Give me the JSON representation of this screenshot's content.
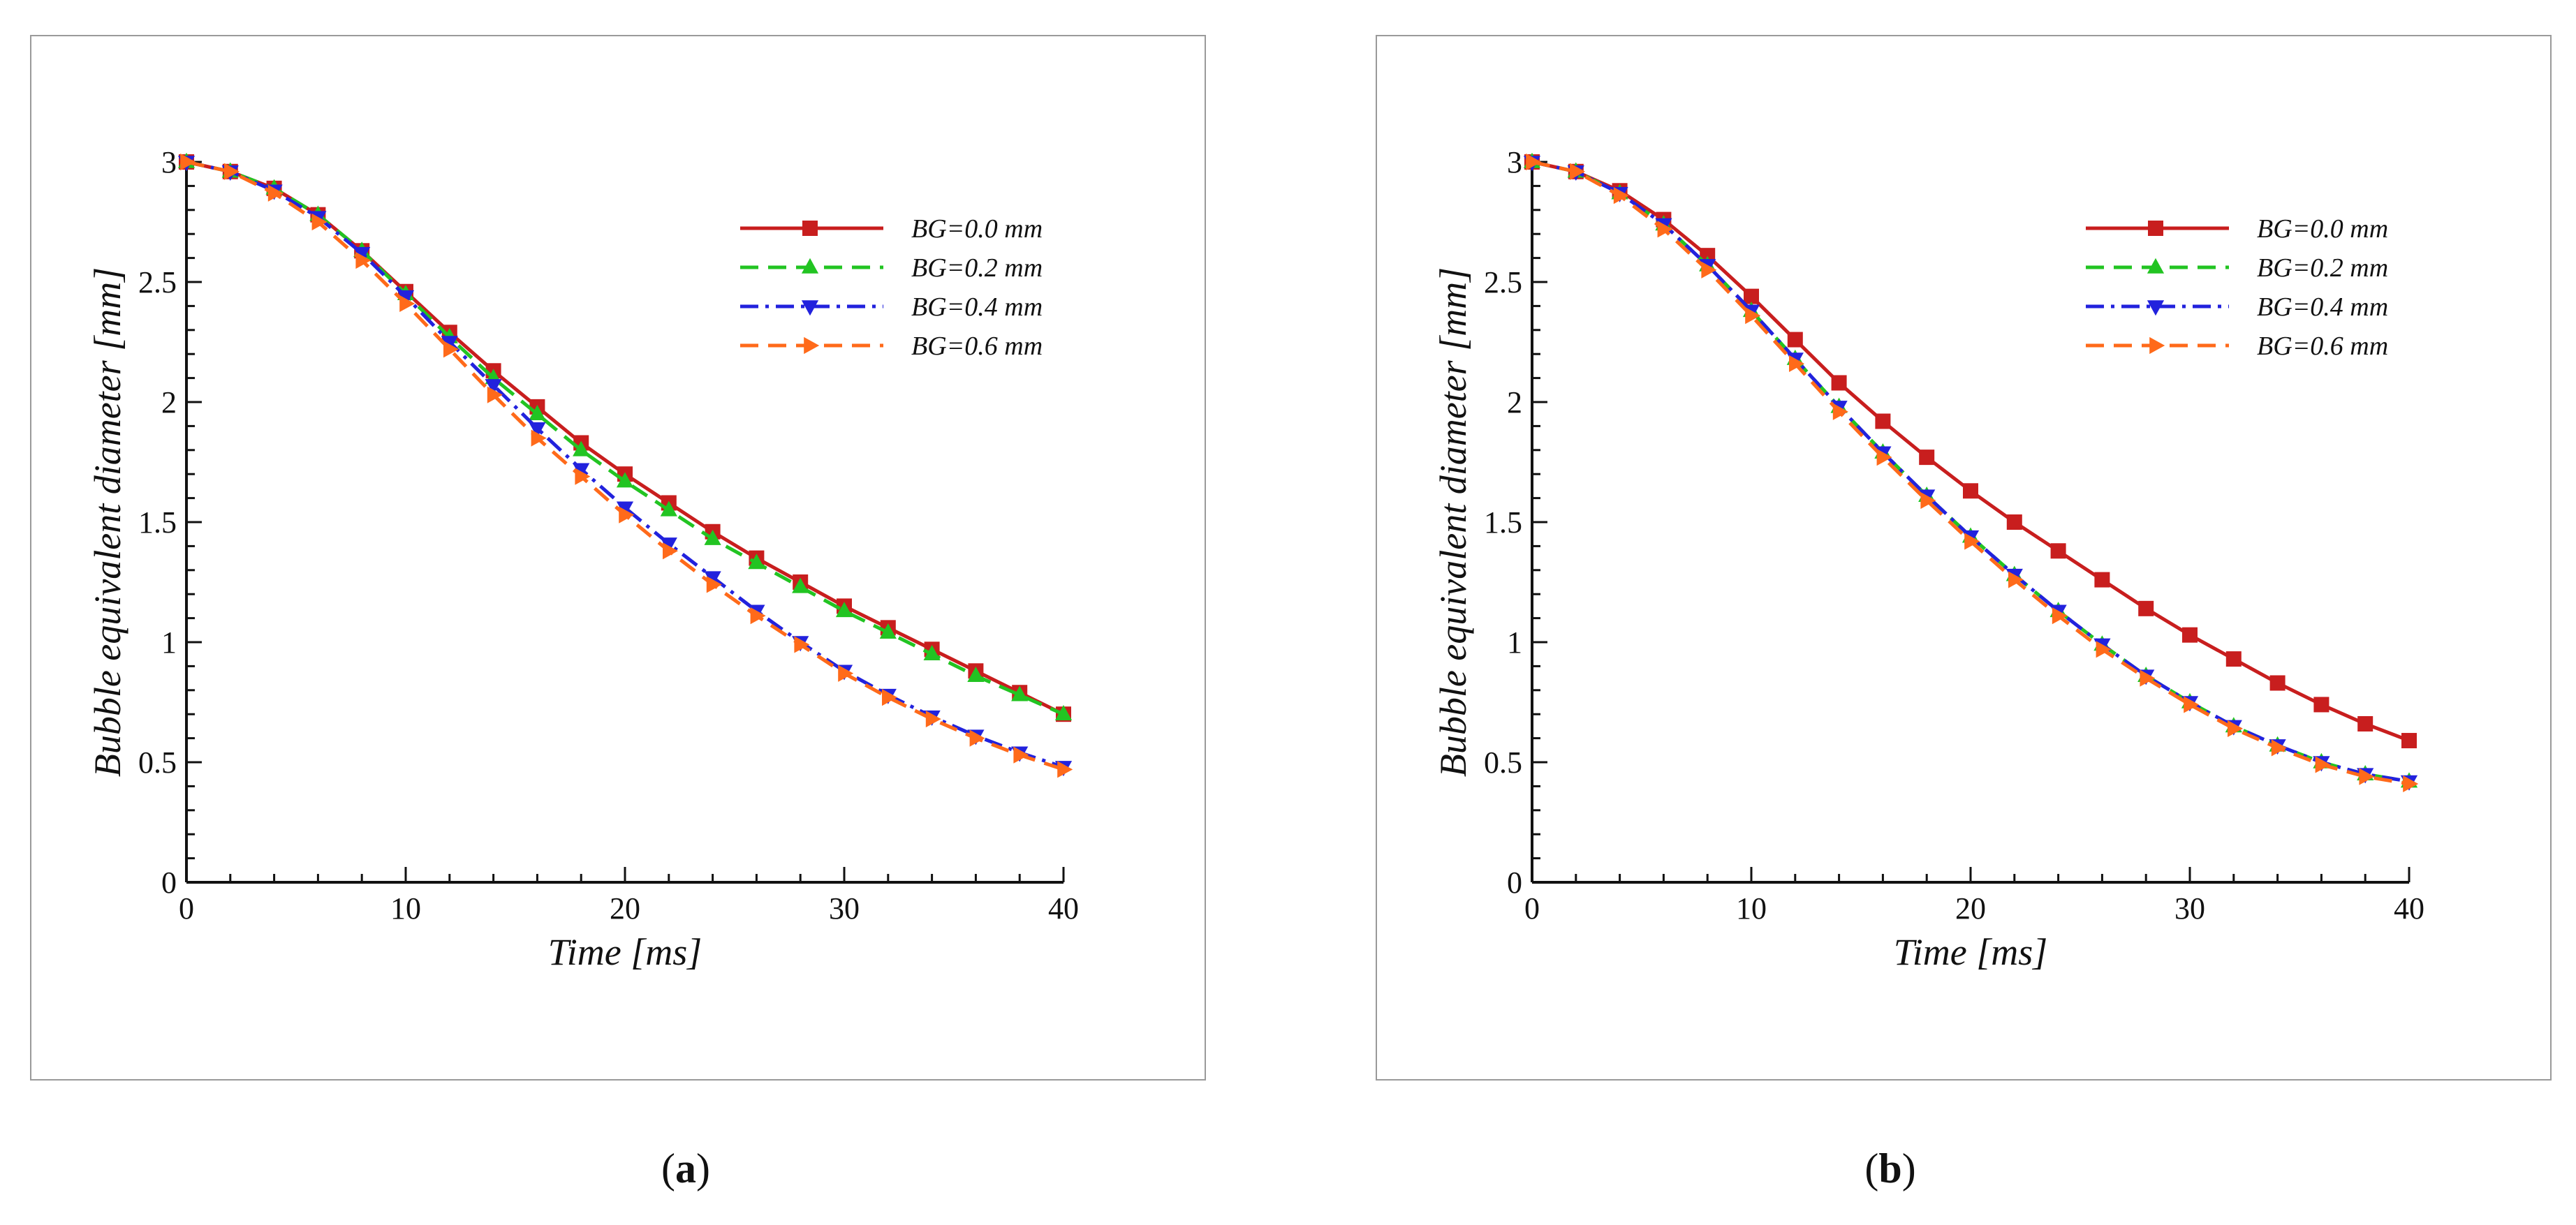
{
  "chart_data": [
    {
      "type": "line",
      "panel_label": "a",
      "xlabel": "Time [ms]",
      "ylabel": "Bubble equivalent diameter [mm]",
      "xlim": [
        0,
        40
      ],
      "ylim": [
        0,
        3
      ],
      "x_ticks": [
        "0",
        "10",
        "20",
        "30",
        "40"
      ],
      "y_ticks": [
        "0",
        "0.5",
        "1",
        "1.5",
        "2",
        "2.5",
        "3"
      ],
      "legend_position": "top-right",
      "series": [
        {
          "name": "BG=0.0 mm",
          "color": "#c81e1e",
          "line": "solid",
          "marker": "square",
          "x": [
            0,
            2,
            4,
            6,
            8,
            10,
            12,
            14,
            16,
            18,
            20,
            22,
            24,
            26,
            28,
            30,
            32,
            34,
            36,
            38,
            40
          ],
          "y": [
            3.0,
            2.96,
            2.89,
            2.78,
            2.63,
            2.46,
            2.29,
            2.13,
            1.98,
            1.83,
            1.7,
            1.58,
            1.46,
            1.35,
            1.25,
            1.15,
            1.06,
            0.97,
            0.88,
            0.79,
            0.7
          ]
        },
        {
          "name": "BG=0.2 mm",
          "color": "#22c422",
          "line": "dashed",
          "marker": "triangle-up",
          "x": [
            0,
            2,
            4,
            6,
            8,
            10,
            12,
            14,
            16,
            18,
            20,
            22,
            24,
            26,
            28,
            30,
            32,
            34,
            36,
            38,
            40
          ],
          "y": [
            3.0,
            2.96,
            2.89,
            2.78,
            2.63,
            2.45,
            2.27,
            2.1,
            1.95,
            1.8,
            1.67,
            1.55,
            1.43,
            1.33,
            1.23,
            1.13,
            1.04,
            0.95,
            0.86,
            0.78,
            0.7
          ]
        },
        {
          "name": "BG=0.4 mm",
          "color": "#2222dd",
          "line": "dashdot",
          "marker": "triangle-down",
          "x": [
            0,
            2,
            4,
            6,
            8,
            10,
            12,
            14,
            16,
            18,
            20,
            22,
            24,
            26,
            28,
            30,
            32,
            34,
            36,
            38,
            40
          ],
          "y": [
            3.0,
            2.96,
            2.88,
            2.77,
            2.62,
            2.44,
            2.25,
            2.07,
            1.89,
            1.72,
            1.56,
            1.41,
            1.27,
            1.13,
            1.0,
            0.88,
            0.78,
            0.69,
            0.61,
            0.54,
            0.48
          ]
        },
        {
          "name": "BG=0.6 mm",
          "color": "#ff6a1a",
          "line": "dashed",
          "marker": "triangle-right",
          "x": [
            0,
            2,
            4,
            6,
            8,
            10,
            12,
            14,
            16,
            18,
            20,
            22,
            24,
            26,
            28,
            30,
            32,
            34,
            36,
            38,
            40
          ],
          "y": [
            3.0,
            2.96,
            2.87,
            2.75,
            2.59,
            2.41,
            2.22,
            2.03,
            1.85,
            1.69,
            1.53,
            1.38,
            1.24,
            1.11,
            0.99,
            0.87,
            0.77,
            0.68,
            0.6,
            0.53,
            0.47
          ]
        }
      ]
    },
    {
      "type": "line",
      "panel_label": "b",
      "xlabel": "Time [ms]",
      "ylabel": "Bubble equivalent diameter [mm]",
      "xlim": [
        0,
        40
      ],
      "ylim": [
        0,
        3
      ],
      "x_ticks": [
        "0",
        "10",
        "20",
        "30",
        "40"
      ],
      "y_ticks": [
        "0",
        "0.5",
        "1",
        "1.5",
        "2",
        "2.5",
        "3"
      ],
      "legend_position": "top-right",
      "series": [
        {
          "name": "BG=0.0 mm",
          "color": "#c81e1e",
          "line": "solid",
          "marker": "square",
          "x": [
            0,
            2,
            4,
            6,
            8,
            10,
            12,
            14,
            16,
            18,
            20,
            22,
            24,
            26,
            28,
            30,
            32,
            34,
            36,
            38,
            40
          ],
          "y": [
            3.0,
            2.96,
            2.88,
            2.76,
            2.61,
            2.44,
            2.26,
            2.08,
            1.92,
            1.77,
            1.63,
            1.5,
            1.38,
            1.26,
            1.14,
            1.03,
            0.93,
            0.83,
            0.74,
            0.66,
            0.59
          ]
        },
        {
          "name": "BG=0.2 mm",
          "color": "#22c422",
          "line": "dashed",
          "marker": "triangle-up",
          "x": [
            0,
            2,
            4,
            6,
            8,
            10,
            12,
            14,
            16,
            18,
            20,
            22,
            24,
            26,
            28,
            30,
            32,
            34,
            36,
            38,
            40
          ],
          "y": [
            3.0,
            2.96,
            2.87,
            2.74,
            2.57,
            2.38,
            2.18,
            1.98,
            1.79,
            1.61,
            1.44,
            1.28,
            1.13,
            0.99,
            0.86,
            0.75,
            0.65,
            0.57,
            0.5,
            0.45,
            0.42
          ]
        },
        {
          "name": "BG=0.4 mm",
          "color": "#2222dd",
          "line": "dashdot",
          "marker": "triangle-down",
          "x": [
            0,
            2,
            4,
            6,
            8,
            10,
            12,
            14,
            16,
            18,
            20,
            22,
            24,
            26,
            28,
            30,
            32,
            34,
            36,
            38,
            40
          ],
          "y": [
            3.0,
            2.96,
            2.87,
            2.74,
            2.57,
            2.38,
            2.18,
            1.98,
            1.79,
            1.61,
            1.44,
            1.28,
            1.13,
            0.99,
            0.86,
            0.75,
            0.65,
            0.57,
            0.5,
            0.45,
            0.42
          ]
        },
        {
          "name": "BG=0.6 mm",
          "color": "#ff6a1a",
          "line": "dashed",
          "marker": "triangle-right",
          "x": [
            0,
            2,
            4,
            6,
            8,
            10,
            12,
            14,
            16,
            18,
            20,
            22,
            24,
            26,
            28,
            30,
            32,
            34,
            36,
            38,
            40
          ],
          "y": [
            3.0,
            2.96,
            2.86,
            2.72,
            2.55,
            2.36,
            2.16,
            1.96,
            1.77,
            1.59,
            1.42,
            1.26,
            1.11,
            0.97,
            0.85,
            0.74,
            0.64,
            0.56,
            0.49,
            0.44,
            0.41
          ]
        }
      ]
    }
  ],
  "captions": [
    "a",
    "b"
  ]
}
